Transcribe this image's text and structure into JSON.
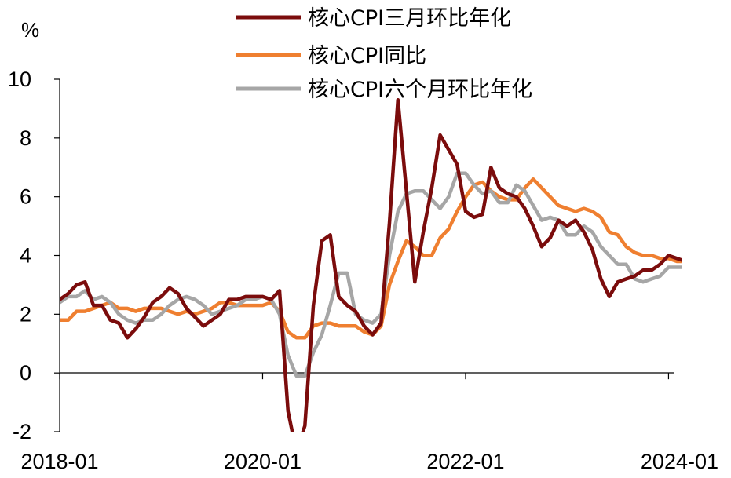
{
  "chart_data": {
    "type": "line",
    "ylabel": "%",
    "ylim": [
      -2,
      10
    ],
    "yticks": [
      "-2",
      "0",
      "2",
      "4",
      "6",
      "8",
      "10"
    ],
    "xticks": [
      "2018-01",
      "2020-01",
      "2022-01",
      "2024-01"
    ],
    "x": [
      "2018-01",
      "2018-02",
      "2018-03",
      "2018-04",
      "2018-05",
      "2018-06",
      "2018-07",
      "2018-08",
      "2018-09",
      "2018-10",
      "2018-11",
      "2018-12",
      "2019-01",
      "2019-02",
      "2019-03",
      "2019-04",
      "2019-05",
      "2019-06",
      "2019-07",
      "2019-08",
      "2019-09",
      "2019-10",
      "2019-11",
      "2019-12",
      "2020-01",
      "2020-02",
      "2020-03",
      "2020-04",
      "2020-05",
      "2020-06",
      "2020-07",
      "2020-08",
      "2020-09",
      "2020-10",
      "2020-11",
      "2020-12",
      "2021-01",
      "2021-02",
      "2021-03",
      "2021-04",
      "2021-05",
      "2021-06",
      "2021-07",
      "2021-08",
      "2021-09",
      "2021-10",
      "2021-11",
      "2021-12",
      "2022-01",
      "2022-02",
      "2022-03",
      "2022-04",
      "2022-05",
      "2022-06",
      "2022-07",
      "2022-08",
      "2022-09",
      "2022-10",
      "2022-11",
      "2022-12",
      "2023-01",
      "2023-02",
      "2023-03",
      "2023-04",
      "2023-05",
      "2023-06",
      "2023-07",
      "2023-08",
      "2023-09",
      "2023-10",
      "2023-11",
      "2023-12",
      "2024-01",
      "2024-02",
      "2024-03"
    ],
    "series": [
      {
        "name": "核心CPI三月环比年化",
        "color": "#7b0c0c",
        "values": [
          2.5,
          2.7,
          3.0,
          3.1,
          2.3,
          2.3,
          1.8,
          1.7,
          1.2,
          1.5,
          1.9,
          2.4,
          2.6,
          2.9,
          2.7,
          2.2,
          1.9,
          1.6,
          1.8,
          2.0,
          2.5,
          2.5,
          2.6,
          2.6,
          2.6,
          2.5,
          2.8,
          -1.3,
          -2.7,
          -1.8,
          2.3,
          4.5,
          4.7,
          2.6,
          2.3,
          2.1,
          1.6,
          1.3,
          1.7,
          5.1,
          9.3,
          6.2,
          3.1,
          4.8,
          6.3,
          8.1,
          7.6,
          7.1,
          5.5,
          5.3,
          5.4,
          7.0,
          6.3,
          6.1,
          6.0,
          5.6,
          5.0,
          4.3,
          4.6,
          5.2,
          5.0,
          5.2,
          4.8,
          4.2,
          3.2,
          2.6,
          3.1,
          3.2,
          3.3,
          3.5,
          3.5,
          3.7,
          4.0,
          3.9,
          3.8
        ]
      },
      {
        "name": "核心CPI同比",
        "color": "#ef7f30",
        "values": [
          1.8,
          1.8,
          2.1,
          2.1,
          2.2,
          2.3,
          2.4,
          2.2,
          2.2,
          2.1,
          2.2,
          2.2,
          2.2,
          2.1,
          2.0,
          2.1,
          2.0,
          2.1,
          2.2,
          2.4,
          2.4,
          2.3,
          2.3,
          2.3,
          2.3,
          2.4,
          2.1,
          1.4,
          1.2,
          1.2,
          1.6,
          1.7,
          1.7,
          1.6,
          1.6,
          1.6,
          1.4,
          1.3,
          1.6,
          3.0,
          3.8,
          4.5,
          4.3,
          4.0,
          4.0,
          4.6,
          4.9,
          5.5,
          6.0,
          6.4,
          6.5,
          6.2,
          6.0,
          5.9,
          5.9,
          6.3,
          6.6,
          6.3,
          6.0,
          5.7,
          5.6,
          5.5,
          5.6,
          5.5,
          5.3,
          4.8,
          4.7,
          4.3,
          4.1,
          4.0,
          4.0,
          3.9,
          3.9,
          3.8,
          3.8
        ]
      },
      {
        "name": "核心CPI六个月环比年化",
        "color": "#a6a6a6",
        "values": [
          2.4,
          2.6,
          2.6,
          2.8,
          2.5,
          2.6,
          2.4,
          2.0,
          1.8,
          1.7,
          1.8,
          1.8,
          2.0,
          2.3,
          2.5,
          2.6,
          2.5,
          2.3,
          2.0,
          2.1,
          2.2,
          2.3,
          2.5,
          2.5,
          2.6,
          2.5,
          2.0,
          0.6,
          -0.1,
          -0.1,
          0.7,
          1.3,
          2.3,
          3.4,
          3.4,
          2.0,
          1.8,
          1.7,
          2.0,
          4.0,
          5.5,
          6.1,
          6.2,
          6.2,
          5.9,
          5.6,
          6.0,
          6.8,
          6.8,
          6.4,
          6.1,
          6.2,
          5.8,
          5.8,
          6.4,
          6.2,
          5.7,
          5.2,
          5.3,
          5.2,
          4.7,
          4.7,
          5.0,
          4.8,
          4.3,
          4.0,
          3.7,
          3.7,
          3.2,
          3.1,
          3.2,
          3.3,
          3.6,
          3.6,
          3.6
        ]
      }
    ],
    "grid": false,
    "legend_position": "top"
  }
}
